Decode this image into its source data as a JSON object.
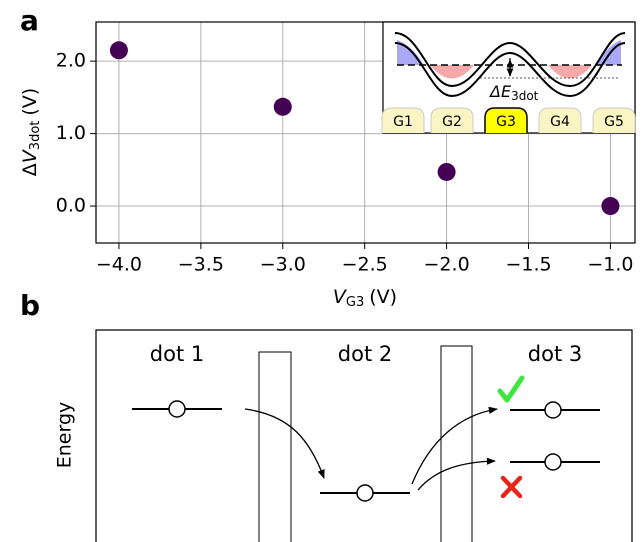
{
  "panel_labels": [
    "a",
    "b"
  ],
  "chart_data": {
    "type": "scatter",
    "x": [
      -4,
      -3,
      -2,
      -1
    ],
    "values": [
      2.15,
      1.37,
      0.47,
      0.0
    ],
    "color": "#440154",
    "xlim": [
      -4.14,
      -0.85
    ],
    "ylim": [
      -0.51,
      2.54
    ],
    "xticks": [
      {
        "value": -4,
        "label": "−4.0"
      },
      {
        "value": -3.5,
        "label": "−3.5"
      },
      {
        "value": -3,
        "label": "−3.0"
      },
      {
        "value": -2.5,
        "label": "−2.5"
      },
      {
        "value": -2,
        "label": "−2.0"
      },
      {
        "value": -1.5,
        "label": "−1.5"
      },
      {
        "value": -1,
        "label": "−1.0"
      }
    ],
    "yticks": [
      {
        "value": 0,
        "label": "0.0"
      },
      {
        "value": 1,
        "label": "1.0"
      },
      {
        "value": 2,
        "label": "2.0"
      }
    ],
    "grid": true,
    "xlabel": {
      "var": "V",
      "sub": "G3",
      "unit": "(V)"
    },
    "ylabel": {
      "delta": "Δ",
      "var": "V",
      "sub": "3dot",
      "unit": "(V)"
    }
  },
  "inset": {
    "energy": {
      "var": "ΔE",
      "sub": "3dot"
    },
    "gates": [
      "G1",
      "G2",
      "G3",
      "G4",
      "G5"
    ]
  },
  "diagram": {
    "dots": [
      "dot 1",
      "dot 2",
      "dot 3"
    ],
    "axis_label": "Energy"
  }
}
